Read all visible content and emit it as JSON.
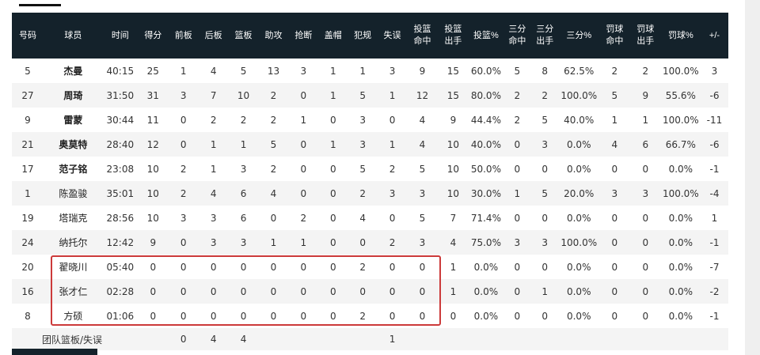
{
  "columns": [
    "号码",
    "球员",
    "时间",
    "得分",
    "前板",
    "后板",
    "篮板",
    "助攻",
    "抢断",
    "盖帽",
    "犯规",
    "失误",
    "投篮\n命中",
    "投篮\n出手",
    "投篮%",
    "三分\n命中",
    "三分\n出手",
    "三分%",
    "罚球\n命中",
    "罚球\n出手",
    "罚球%",
    "+/-"
  ],
  "rows": [
    {
      "number": "5",
      "name": "杰曼",
      "bold": true,
      "stats": [
        "40:15",
        "25",
        "1",
        "4",
        "5",
        "13",
        "3",
        "1",
        "1",
        "3",
        "9",
        "15",
        "60.0%",
        "5",
        "8",
        "62.5%",
        "2",
        "2",
        "100.0%",
        "3"
      ]
    },
    {
      "number": "27",
      "name": "周琦",
      "bold": true,
      "stats": [
        "31:50",
        "31",
        "3",
        "7",
        "10",
        "2",
        "0",
        "1",
        "5",
        "1",
        "12",
        "15",
        "80.0%",
        "2",
        "2",
        "100.0%",
        "5",
        "9",
        "55.6%",
        "-6"
      ]
    },
    {
      "number": "9",
      "name": "雷蒙",
      "bold": true,
      "stats": [
        "30:44",
        "11",
        "0",
        "2",
        "2",
        "2",
        "1",
        "0",
        "3",
        "0",
        "4",
        "9",
        "44.4%",
        "2",
        "5",
        "40.0%",
        "1",
        "1",
        "100.0%",
        "-11"
      ]
    },
    {
      "number": "21",
      "name": "奥莫特",
      "bold": true,
      "stats": [
        "28:40",
        "12",
        "0",
        "1",
        "1",
        "5",
        "0",
        "1",
        "3",
        "1",
        "4",
        "10",
        "40.0%",
        "0",
        "3",
        "0.0%",
        "4",
        "6",
        "66.7%",
        "-6"
      ]
    },
    {
      "number": "17",
      "name": "范子铭",
      "bold": true,
      "stats": [
        "23:08",
        "10",
        "2",
        "1",
        "3",
        "2",
        "0",
        "0",
        "5",
        "2",
        "5",
        "10",
        "50.0%",
        "0",
        "0",
        "0.0%",
        "0",
        "0",
        "0.0%",
        "-1"
      ]
    },
    {
      "number": "1",
      "name": "陈盈骏",
      "bold": false,
      "stats": [
        "35:01",
        "10",
        "2",
        "4",
        "6",
        "4",
        "0",
        "0",
        "2",
        "3",
        "3",
        "10",
        "30.0%",
        "1",
        "5",
        "20.0%",
        "3",
        "3",
        "100.0%",
        "-4"
      ]
    },
    {
      "number": "19",
      "name": "塔瑞克",
      "bold": false,
      "stats": [
        "28:56",
        "10",
        "3",
        "3",
        "6",
        "0",
        "2",
        "0",
        "4",
        "0",
        "5",
        "7",
        "71.4%",
        "0",
        "0",
        "0.0%",
        "0",
        "0",
        "0.0%",
        "1"
      ]
    },
    {
      "number": "24",
      "name": "纳托尔",
      "bold": false,
      "stats": [
        "12:42",
        "9",
        "0",
        "3",
        "3",
        "1",
        "1",
        "0",
        "0",
        "2",
        "3",
        "4",
        "75.0%",
        "3",
        "3",
        "100.0%",
        "0",
        "0",
        "0.0%",
        "-1"
      ]
    },
    {
      "number": "20",
      "name": "翟晓川",
      "bold": false,
      "stats": [
        "05:40",
        "0",
        "0",
        "0",
        "0",
        "0",
        "0",
        "0",
        "2",
        "0",
        "0",
        "1",
        "0.0%",
        "0",
        "0",
        "0.0%",
        "0",
        "0",
        "0.0%",
        "-7"
      ]
    },
    {
      "number": "16",
      "name": "张才仁",
      "bold": false,
      "stats": [
        "02:28",
        "0",
        "0",
        "0",
        "0",
        "0",
        "0",
        "0",
        "0",
        "0",
        "0",
        "1",
        "0.0%",
        "0",
        "1",
        "0.0%",
        "0",
        "0",
        "0.0%",
        "-2"
      ]
    },
    {
      "number": "8",
      "name": "方硕",
      "bold": false,
      "stats": [
        "01:06",
        "0",
        "0",
        "0",
        "0",
        "0",
        "0",
        "0",
        "2",
        "0",
        "0",
        "0",
        "0.0%",
        "0",
        "0",
        "0.0%",
        "0",
        "0",
        "0.0%",
        "-1"
      ]
    }
  ],
  "team_row": {
    "label": "团队篮板/失误",
    "offensive_rebounds": "0",
    "defensive_rebounds": "4",
    "rebounds": "4",
    "turnovers": "1"
  },
  "colors": {
    "header_bg": "#14222b",
    "header_text": "#ffffff",
    "highlight_border": "#cc3a3a",
    "stripe": "#f4f4f4"
  }
}
